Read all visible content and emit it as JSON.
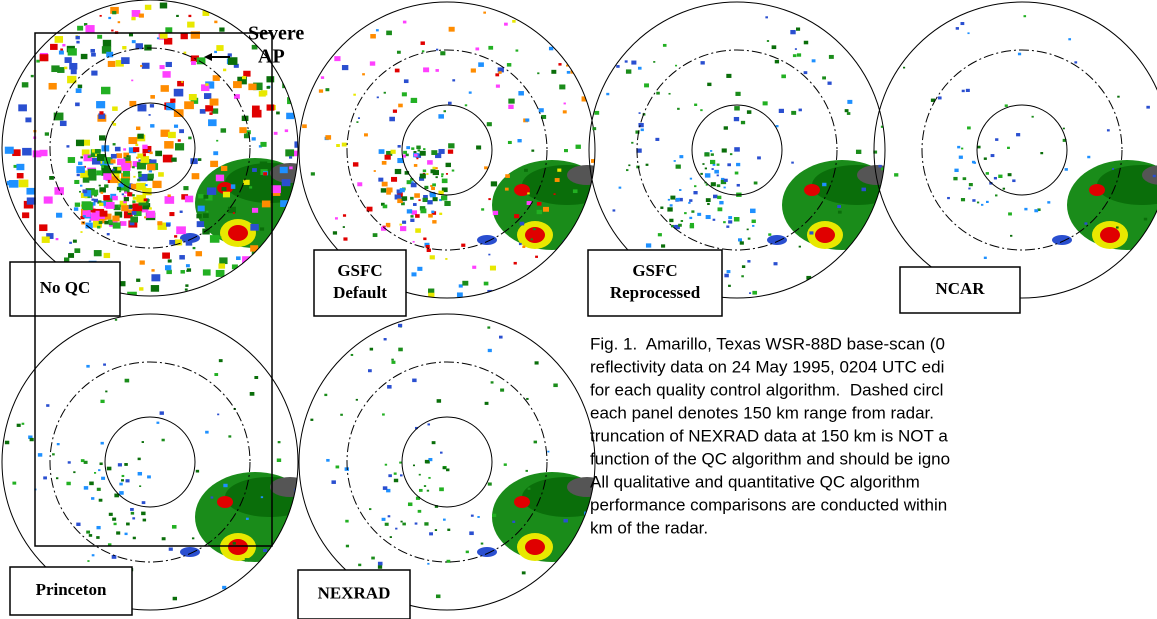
{
  "panels": [
    {
      "label_lines": [
        "No QC"
      ]
    },
    {
      "label_lines": [
        "GSFC",
        "Default"
      ]
    },
    {
      "label_lines": [
        "GSFC",
        "Reprocessed"
      ]
    },
    {
      "label_lines": [
        "NCAR"
      ]
    },
    {
      "label_lines": [
        "Princeton"
      ]
    },
    {
      "label_lines": [
        "NEXRAD"
      ]
    }
  ],
  "annotation": {
    "lines": [
      "Severe",
      "AP"
    ]
  },
  "caption": {
    "lines": [
      "Fig. 1.  Amarillo, Texas WSR-88D base-scan (0",
      "reflectivity data on 24 May 1995, 0204 UTC edi",
      "for each quality control algorithm.  Dashed circl",
      "each panel denotes 150 km range from radar.",
      "truncation of NEXRAD data at 150 km is NOT a",
      "function of the QC algorithm and should be igno",
      "All qualitative and quantitative QC algorithm",
      "performance comparisons are conducted within",
      "km of the radar."
    ]
  }
}
